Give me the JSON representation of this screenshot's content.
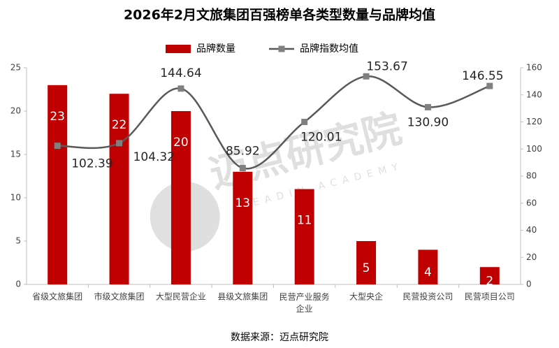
{
  "chart_data": {
    "type": "bar-line",
    "title": "2026年2月文旅集团百强榜单各类型数量与品牌均值",
    "categories": [
      "省级文旅集团",
      "市级文旅集团",
      "大型民营企业",
      "县级文旅集团",
      "民营产业服务企业",
      "大型央企",
      "民营投资公司",
      "民营项目公司"
    ],
    "series": [
      {
        "name": "品牌数量",
        "color": "#c00000",
        "type": "bar",
        "values": [
          23,
          22,
          20,
          13,
          11,
          5,
          4,
          2
        ]
      },
      {
        "name": "品牌指数均值",
        "color": "#595959",
        "marker_color": "#808080",
        "type": "line",
        "axis": "y2",
        "values": [
          102.39,
          104.32,
          144.64,
          85.92,
          120.01,
          153.67,
          130.9,
          146.55
        ],
        "value_labels": [
          "102.39",
          "104.32",
          "144.64",
          "85.92",
          "120.01",
          "153.67",
          "130.90",
          "146.55"
        ]
      }
    ],
    "ylim": [
      0,
      25
    ],
    "yticks": [
      0,
      5,
      10,
      15,
      20,
      25
    ],
    "y2lim": [
      0,
      160
    ],
    "y2ticks": [
      0,
      20,
      40,
      60,
      80,
      100,
      120,
      140,
      160
    ],
    "legend": "top",
    "source": "数据来源：迈点研究院",
    "watermark": "迈点研究院",
    "watermark_sub": "MEADIN ACADEMY"
  }
}
